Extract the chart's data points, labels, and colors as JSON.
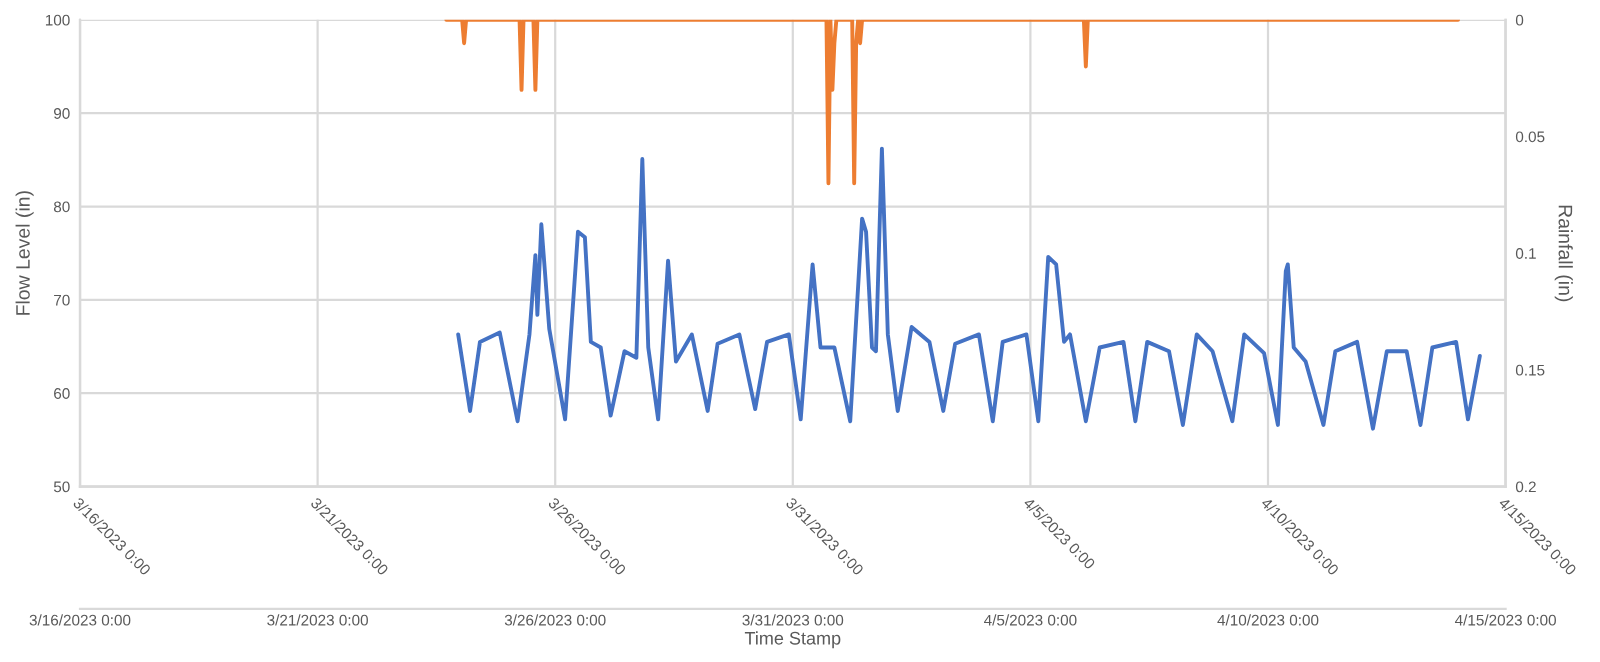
{
  "chart_data": {
    "type": "line",
    "xlabel": "Time Stamp",
    "ylabel": "Flow Level (in)",
    "y2label": "Rainfall (in)",
    "xlim": [
      "2023-03-16",
      "2023-04-15"
    ],
    "xticks": [
      {
        "value": "2023-03-16",
        "label": "3/16/2023 0:00"
      },
      {
        "value": "2023-03-21",
        "label": "3/21/2023 0:00"
      },
      {
        "value": "2023-03-26",
        "label": "3/26/2023 0:00"
      },
      {
        "value": "2023-03-31",
        "label": "3/31/2023 0:00"
      },
      {
        "value": "2023-04-05",
        "label": "4/5/2023 0:00"
      },
      {
        "value": "2023-04-10",
        "label": "4/10/2023 0:00"
      },
      {
        "value": "2023-04-15",
        "label": "4/15/2023 0:00"
      }
    ],
    "x2lim": [
      "2023-03-16",
      "2023-04-15"
    ],
    "x2ticks": [
      {
        "value": "2023-03-16",
        "label": "3/16/2023 0:00"
      },
      {
        "value": "2023-03-21",
        "label": "3/21/2023 0:00"
      },
      {
        "value": "2023-03-26",
        "label": "3/26/2023 0:00"
      },
      {
        "value": "2023-03-31",
        "label": "3/31/2023 0:00"
      },
      {
        "value": "2023-04-05",
        "label": "4/5/2023 0:00"
      },
      {
        "value": "2023-04-10",
        "label": "4/10/2023 0:00"
      },
      {
        "value": "2023-04-15",
        "label": "4/15/2023 0:00"
      }
    ],
    "ylim": [
      50,
      100
    ],
    "yticks": [
      50,
      60,
      70,
      80,
      90,
      100
    ],
    "y2lim": [
      0.2,
      0
    ],
    "y2ticks": [
      0,
      0.05,
      0.1,
      0.15,
      0.2
    ],
    "grid": true,
    "legend": false,
    "marker": "none",
    "line_style": "solid",
    "series": [
      {
        "color": "#4472c4",
        "x": [
          "2023-03-23T23:00",
          "2023-03-24T05:00",
          "2023-03-24T10:00",
          "2023-03-24T20:00",
          "2023-03-25T05:00",
          "2023-03-25T11:00",
          "2023-03-25T14:00",
          "2023-03-25T15:00",
          "2023-03-25T17:00",
          "2023-03-25T21:00",
          "2023-03-26T05:00",
          "2023-03-26T11:30",
          "2023-03-26T15:00",
          "2023-03-26T18:00",
          "2023-03-26T23:00",
          "2023-03-27T04:00",
          "2023-03-27T11:00",
          "2023-03-27T17:00",
          "2023-03-27T20:00",
          "2023-03-27T23:00",
          "2023-03-28T04:00",
          "2023-03-28T09:00",
          "2023-03-28T13:00",
          "2023-03-28T21:00",
          "2023-03-29T05:00",
          "2023-03-29T10:00",
          "2023-03-29T21:00",
          "2023-03-30T05:00",
          "2023-03-30T11:00",
          "2023-03-30T22:00",
          "2023-03-31T04:00",
          "2023-03-31T10:00",
          "2023-03-31T14:00",
          "2023-03-31T21:00",
          "2023-04-01T05:00",
          "2023-04-01T11:00",
          "2023-04-01T13:00",
          "2023-04-01T16:00",
          "2023-04-01T18:00",
          "2023-04-01T21:00",
          "2023-04-02T00:00",
          "2023-04-02T05:00",
          "2023-04-02T12:00",
          "2023-04-02T21:00",
          "2023-04-03T04:00",
          "2023-04-03T10:00",
          "2023-04-03T22:00",
          "2023-04-04T05:00",
          "2023-04-04T10:00",
          "2023-04-04T22:00",
          "2023-04-05T04:00",
          "2023-04-05T09:00",
          "2023-04-05T13:00",
          "2023-04-05T17:00",
          "2023-04-05T20:00",
          "2023-04-06T04:00",
          "2023-04-06T11:00",
          "2023-04-06T23:00",
          "2023-04-07T05:00",
          "2023-04-07T11:00",
          "2023-04-07T22:00",
          "2023-04-08T05:00",
          "2023-04-08T12:00",
          "2023-04-08T20:00",
          "2023-04-09T06:00",
          "2023-04-09T12:00",
          "2023-04-09T22:00",
          "2023-04-10T05:00",
          "2023-04-10T09:00",
          "2023-04-10T10:00",
          "2023-04-10T13:00",
          "2023-04-10T19:00",
          "2023-04-11T04:00",
          "2023-04-11T10:00",
          "2023-04-11T21:00",
          "2023-04-12T05:00",
          "2023-04-12T12:00",
          "2023-04-12T22:00",
          "2023-04-13T05:00",
          "2023-04-13T11:00",
          "2023-04-13T23:00",
          "2023-04-14T05:00",
          "2023-04-14T11:00"
        ],
        "values": [
          66.3,
          58.1,
          65.5,
          66.5,
          57.0,
          66.3,
          74.8,
          68.4,
          78.1,
          66.9,
          57.2,
          77.3,
          76.7,
          65.5,
          64.9,
          57.6,
          64.5,
          63.8,
          85.1,
          64.9,
          57.2,
          74.2,
          63.4,
          66.3,
          58.1,
          65.3,
          66.3,
          58.3,
          65.5,
          66.3,
          57.2,
          73.8,
          64.9,
          64.9,
          57.0,
          78.7,
          77.3,
          64.9,
          64.5,
          86.2,
          66.3,
          58.1,
          67.1,
          65.5,
          58.1,
          65.3,
          66.3,
          57.0,
          65.5,
          66.3,
          57.0,
          74.6,
          73.8,
          65.5,
          66.3,
          57.0,
          64.9,
          65.5,
          57.0,
          65.5,
          64.5,
          56.6,
          66.3,
          64.5,
          57.0,
          66.3,
          64.3,
          56.6,
          73.1,
          73.8,
          64.9,
          63.4,
          56.6,
          64.5,
          65.5,
          56.2,
          64.5,
          64.5,
          56.6,
          64.9,
          65.5,
          57.2,
          64.0
        ]
      },
      {
        "color": "#ed7d31",
        "axis": "y2",
        "x": [
          "2023-03-23T17:00",
          "2023-03-24T01:00",
          "2023-03-24T02:00",
          "2023-03-24T03:00",
          "2023-03-25T06:00",
          "2023-03-25T07:00",
          "2023-03-25T08:00",
          "2023-03-25T13:00",
          "2023-03-25T14:00",
          "2023-03-25T15:00",
          "2023-03-31T17:00",
          "2023-03-31T18:00",
          "2023-03-31T19:00",
          "2023-03-31T20:00",
          "2023-03-31T21:00",
          "2023-03-31T22:00",
          "2023-04-01T06:00",
          "2023-04-01T07:00",
          "2023-04-01T08:00",
          "2023-04-01T09:00",
          "2023-04-01T10:00",
          "2023-04-01T11:00",
          "2023-04-06T03:00",
          "2023-04-06T04:00",
          "2023-04-06T05:00",
          "2023-04-14T00:00"
        ],
        "values": [
          0,
          0,
          0.01,
          0,
          0,
          0.03,
          0,
          0,
          0.03,
          0,
          0,
          0.07,
          0,
          0.03,
          0.01,
          0,
          0,
          0.07,
          0.01,
          0,
          0.01,
          0,
          0,
          0.02,
          0,
          0
        ]
      }
    ]
  }
}
